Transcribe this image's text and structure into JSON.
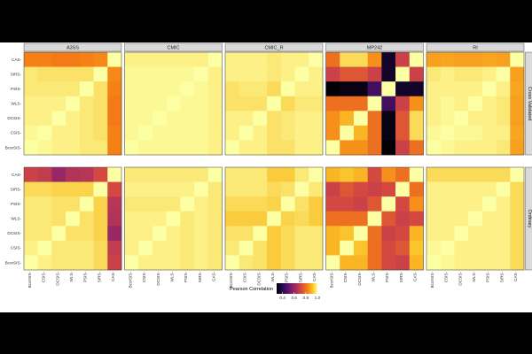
{
  "chart_data": {
    "type": "heatmap",
    "columns": [
      "A3SS",
      "CMIC",
      "CMIC_R",
      "MP242",
      "RI"
    ],
    "rows": [
      "Cross Validated",
      "Ordinary"
    ],
    "y_categories": [
      "CAS",
      "SIRS",
      "PSIS",
      "WLS",
      "DCSIS",
      "CSIS",
      "BcorSIS"
    ],
    "x_categories": [
      "BcorSIS",
      "CSIS",
      "DCSIS",
      "WLS",
      "PSIS",
      "SIRS",
      "CAS"
    ],
    "legend": {
      "title": "Pearson Correlation",
      "ticks": [
        0.4,
        0.6,
        0.8,
        1.0
      ],
      "range": [
        0.3,
        1.0
      ]
    },
    "panels": [
      {
        "row": "Cross Validated",
        "col": "A3SS",
        "matrix": [
          [
            0.83,
            0.83,
            0.82,
            0.82,
            0.83,
            0.84,
            1.0
          ],
          [
            0.97,
            0.96,
            0.96,
            0.96,
            0.96,
            1.0,
            0.84
          ],
          [
            0.97,
            0.97,
            0.97,
            0.97,
            1.0,
            0.96,
            0.83
          ],
          [
            0.98,
            0.98,
            0.98,
            1.0,
            0.97,
            0.96,
            0.82
          ],
          [
            0.98,
            0.98,
            1.0,
            0.98,
            0.97,
            0.96,
            0.82
          ],
          [
            0.99,
            1.0,
            0.98,
            0.98,
            0.97,
            0.96,
            0.83
          ],
          [
            1.0,
            0.99,
            0.98,
            0.98,
            0.97,
            0.97,
            0.83
          ]
        ]
      },
      {
        "row": "Cross Validated",
        "col": "CMIC",
        "matrix": [
          [
            0.98,
            0.98,
            0.98,
            0.98,
            0.98,
            0.98,
            1.0
          ],
          [
            0.99,
            0.99,
            0.99,
            0.99,
            0.99,
            1.0,
            0.98
          ],
          [
            0.99,
            0.99,
            0.99,
            0.99,
            1.0,
            0.99,
            0.98
          ],
          [
            0.99,
            0.99,
            0.99,
            1.0,
            0.99,
            0.99,
            0.98
          ],
          [
            0.99,
            0.99,
            1.0,
            0.99,
            0.99,
            0.99,
            0.98
          ],
          [
            0.99,
            1.0,
            0.99,
            0.99,
            0.99,
            0.99,
            0.98
          ],
          [
            1.0,
            0.99,
            0.99,
            0.99,
            0.99,
            0.99,
            0.98
          ]
        ]
      },
      {
        "row": "Cross Validated",
        "col": "CMIC_R",
        "matrix": [
          [
            0.98,
            0.98,
            0.98,
            0.97,
            0.98,
            0.98,
            1.0
          ],
          [
            0.98,
            0.98,
            0.98,
            0.97,
            0.98,
            1.0,
            0.98
          ],
          [
            0.96,
            0.97,
            0.97,
            0.95,
            1.0,
            0.98,
            0.98
          ],
          [
            0.96,
            0.96,
            0.96,
            1.0,
            0.95,
            0.97,
            0.97
          ],
          [
            0.98,
            0.98,
            1.0,
            0.96,
            0.97,
            0.98,
            0.98
          ],
          [
            0.98,
            1.0,
            0.98,
            0.96,
            0.97,
            0.98,
            0.98
          ],
          [
            1.0,
            0.98,
            0.98,
            0.96,
            0.96,
            0.98,
            0.98
          ]
        ]
      },
      {
        "row": "Cross Validated",
        "col": "MP242",
        "matrix": [
          [
            0.8,
            0.95,
            0.95,
            0.85,
            0.35,
            0.7,
            1.0
          ],
          [
            0.7,
            0.75,
            0.75,
            0.7,
            0.35,
            1.0,
            0.7
          ],
          [
            0.3,
            0.32,
            0.32,
            0.45,
            1.0,
            0.35,
            0.35
          ],
          [
            0.8,
            0.8,
            0.8,
            1.0,
            0.45,
            0.7,
            0.85
          ],
          [
            0.85,
            0.9,
            1.0,
            0.8,
            0.32,
            0.75,
            0.95
          ],
          [
            0.85,
            1.0,
            0.9,
            0.8,
            0.32,
            0.75,
            0.95
          ],
          [
            1.0,
            0.85,
            0.85,
            0.8,
            0.3,
            0.7,
            0.8
          ]
        ]
      },
      {
        "row": "Cross Validated",
        "col": "RI",
        "matrix": [
          [
            0.87,
            0.88,
            0.87,
            0.87,
            0.88,
            0.87,
            1.0
          ],
          [
            0.97,
            0.98,
            0.97,
            0.97,
            0.98,
            1.0,
            0.87
          ],
          [
            0.98,
            0.98,
            0.98,
            0.98,
            1.0,
            0.98,
            0.88
          ],
          [
            0.98,
            0.99,
            0.98,
            1.0,
            0.98,
            0.97,
            0.87
          ],
          [
            0.98,
            0.99,
            1.0,
            0.98,
            0.98,
            0.97,
            0.87
          ],
          [
            0.99,
            1.0,
            0.99,
            0.99,
            0.98,
            0.98,
            0.88
          ],
          [
            1.0,
            0.99,
            0.98,
            0.98,
            0.98,
            0.97,
            0.87
          ]
        ]
      },
      {
        "row": "Ordinary",
        "col": "A3SS",
        "matrix": [
          [
            0.7,
            0.68,
            0.6,
            0.65,
            0.66,
            0.72,
            1.0
          ],
          [
            0.95,
            0.95,
            0.94,
            0.94,
            0.94,
            1.0,
            0.72
          ],
          [
            0.97,
            0.97,
            0.96,
            0.96,
            1.0,
            0.94,
            0.66
          ],
          [
            0.97,
            0.97,
            0.96,
            1.0,
            0.96,
            0.94,
            0.65
          ],
          [
            0.97,
            0.97,
            1.0,
            0.96,
            0.96,
            0.94,
            0.6
          ],
          [
            0.98,
            1.0,
            0.97,
            0.97,
            0.97,
            0.95,
            0.68
          ],
          [
            1.0,
            0.98,
            0.97,
            0.97,
            0.97,
            0.95,
            0.7
          ]
        ]
      },
      {
        "row": "Ordinary",
        "col": "CMIC",
        "matrix": [
          [
            0.97,
            0.97,
            0.97,
            0.97,
            0.97,
            0.97,
            1.0
          ],
          [
            0.98,
            0.98,
            0.98,
            0.98,
            0.98,
            1.0,
            0.97
          ],
          [
            0.97,
            0.97,
            0.97,
            0.97,
            1.0,
            0.98,
            0.97
          ],
          [
            0.98,
            0.98,
            0.98,
            1.0,
            0.97,
            0.98,
            0.97
          ],
          [
            0.98,
            0.98,
            1.0,
            0.98,
            0.97,
            0.98,
            0.97
          ],
          [
            0.98,
            1.0,
            0.98,
            0.98,
            0.97,
            0.98,
            0.97
          ],
          [
            1.0,
            0.98,
            0.98,
            0.98,
            0.97,
            0.98,
            0.97
          ]
        ]
      },
      {
        "row": "Ordinary",
        "col": "CMIC_R",
        "matrix": [
          [
            0.97,
            0.97,
            0.97,
            0.93,
            0.93,
            0.97,
            1.0
          ],
          [
            0.97,
            0.97,
            0.97,
            0.95,
            0.96,
            1.0,
            0.97
          ],
          [
            0.95,
            0.95,
            0.95,
            0.94,
            1.0,
            0.96,
            0.93
          ],
          [
            0.93,
            0.93,
            0.93,
            1.0,
            0.94,
            0.95,
            0.93
          ],
          [
            0.96,
            0.96,
            1.0,
            0.93,
            0.95,
            0.97,
            0.97
          ],
          [
            0.97,
            1.0,
            0.96,
            0.93,
            0.95,
            0.97,
            0.97
          ],
          [
            1.0,
            0.97,
            0.96,
            0.93,
            0.95,
            0.97,
            0.97
          ]
        ]
      },
      {
        "row": "Ordinary",
        "col": "MP242",
        "matrix": [
          [
            0.9,
            0.92,
            0.9,
            0.72,
            0.85,
            0.8,
            1.0
          ],
          [
            0.7,
            0.75,
            0.72,
            0.7,
            0.72,
            1.0,
            0.8
          ],
          [
            0.72,
            0.72,
            0.7,
            0.75,
            1.0,
            0.72,
            0.85
          ],
          [
            0.8,
            0.8,
            0.8,
            1.0,
            0.75,
            0.7,
            0.72
          ],
          [
            0.9,
            0.92,
            1.0,
            0.8,
            0.7,
            0.72,
            0.9
          ],
          [
            0.9,
            1.0,
            0.92,
            0.8,
            0.72,
            0.75,
            0.92
          ],
          [
            1.0,
            0.9,
            0.9,
            0.8,
            0.72,
            0.7,
            0.9
          ]
        ]
      },
      {
        "row": "Ordinary",
        "col": "RI",
        "matrix": [
          [
            0.95,
            0.95,
            0.95,
            0.95,
            0.95,
            0.95,
            1.0
          ],
          [
            0.98,
            0.98,
            0.98,
            0.98,
            0.98,
            1.0,
            0.95
          ],
          [
            0.98,
            0.98,
            0.98,
            0.98,
            1.0,
            0.98,
            0.95
          ],
          [
            0.98,
            0.98,
            0.98,
            1.0,
            0.98,
            0.98,
            0.95
          ],
          [
            0.98,
            0.98,
            1.0,
            0.98,
            0.98,
            0.98,
            0.95
          ],
          [
            0.99,
            1.0,
            0.98,
            0.98,
            0.98,
            0.98,
            0.95
          ],
          [
            1.0,
            0.99,
            0.98,
            0.98,
            0.98,
            0.98,
            0.95
          ]
        ]
      }
    ]
  }
}
